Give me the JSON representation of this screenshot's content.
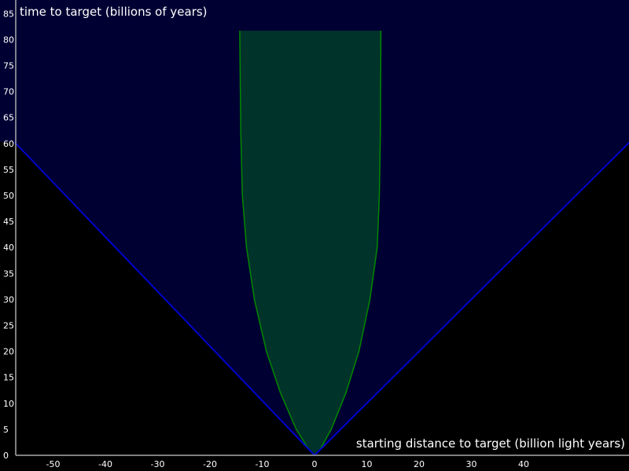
{
  "chart_data": {
    "type": "area",
    "xlabel": "starting distance to target (billion light years)",
    "ylabel": "time to target (billions of years)",
    "xlim": [
      -57.4,
      60.3
    ],
    "ylim": [
      0,
      87.7
    ],
    "x_ticks": [
      -50,
      -40,
      -30,
      -20,
      -10,
      0,
      10,
      20,
      30,
      40
    ],
    "y_ticks": [
      0,
      5,
      10,
      15,
      20,
      25,
      30,
      35,
      40,
      45,
      50,
      55,
      60,
      65,
      70,
      75,
      80,
      85
    ],
    "grid": false,
    "colors": {
      "background": "#000000",
      "cone_fill": "#000033",
      "cone_line": "#0000cc",
      "region_fill": "#00332a",
      "region_line": "#008800",
      "axis": "#aaaaaa",
      "text": "#ffffff"
    },
    "series": [
      {
        "kind": "cone",
        "left": {
          "x": [
            -57.4,
            0
          ],
          "y": [
            60.3,
            0
          ]
        },
        "right": {
          "x": [
            0,
            60.3
          ],
          "y": [
            0,
            60.3
          ]
        }
      },
      {
        "kind": "region",
        "left": {
          "x": [
            -14.3,
            -14.1,
            -13.8,
            -13.0,
            -11.5,
            -9.2,
            -6.5,
            -3.5,
            -1.0,
            0
          ],
          "y": [
            81.7,
            62.0,
            50.0,
            40.0,
            30.0,
            20.0,
            12.0,
            5.0,
            1.0,
            0
          ]
        },
        "right": {
          "x": [
            0,
            1.0,
            3.2,
            6.0,
            8.5,
            10.6,
            12.0,
            12.4,
            12.6,
            12.7
          ],
          "y": [
            0,
            1.0,
            5.0,
            12.0,
            20.0,
            30.0,
            40.0,
            50.0,
            62.0,
            81.7
          ]
        }
      }
    ]
  }
}
